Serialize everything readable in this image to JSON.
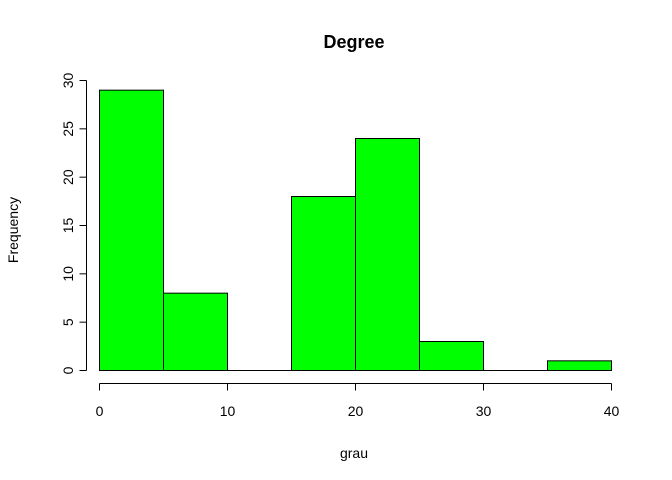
{
  "chart_data": {
    "type": "bar",
    "title": "Degree",
    "xlabel": "grau",
    "ylabel": "Frequency",
    "bins": [
      {
        "start": 0,
        "end": 5,
        "count": 29
      },
      {
        "start": 5,
        "end": 10,
        "count": 8
      },
      {
        "start": 10,
        "end": 15,
        "count": 0
      },
      {
        "start": 15,
        "end": 20,
        "count": 18
      },
      {
        "start": 20,
        "end": 25,
        "count": 24
      },
      {
        "start": 25,
        "end": 30,
        "count": 3
      },
      {
        "start": 30,
        "end": 35,
        "count": 0
      },
      {
        "start": 35,
        "end": 40,
        "count": 1
      }
    ],
    "xlim": [
      0,
      40
    ],
    "ylim": [
      0,
      30
    ],
    "x_ticks": [
      "0",
      "10",
      "20",
      "30",
      "40"
    ],
    "y_ticks": [
      "0",
      "5",
      "10",
      "15",
      "20",
      "25",
      "30"
    ],
    "bar_color": "#00FF00",
    "grid": false
  }
}
